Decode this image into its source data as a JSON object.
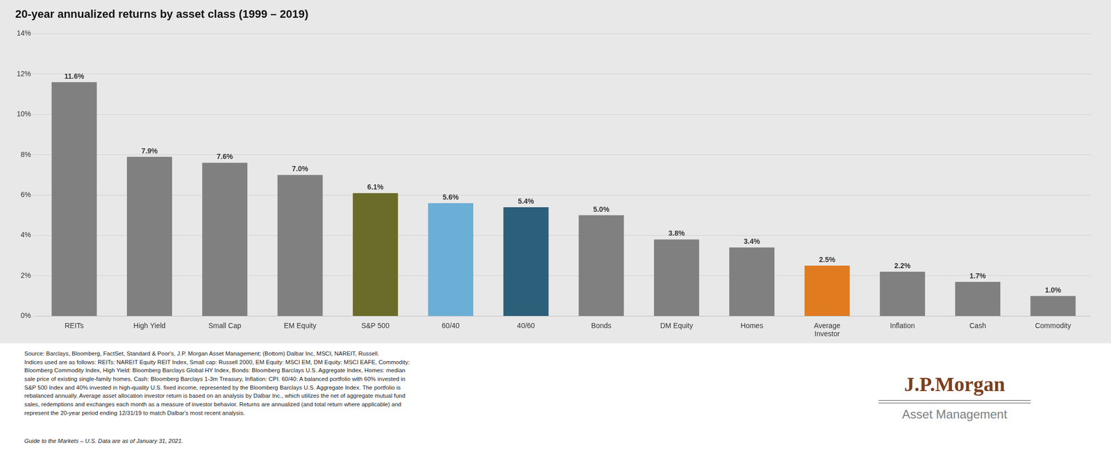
{
  "chart_data": {
    "type": "bar",
    "title": "20-year annualized returns by asset class (1999 – 2019)",
    "categories": [
      "REITs",
      "High Yield",
      "Small Cap",
      "EM Equity",
      "S&P 500",
      "60/40",
      "40/60",
      "Bonds",
      "DM Equity",
      "Homes",
      "Average\nInvestor",
      "Inflation",
      "Cash",
      "Commodity"
    ],
    "values": [
      11.6,
      7.9,
      7.6,
      7.0,
      6.1,
      5.6,
      5.4,
      5.0,
      3.8,
      3.4,
      2.5,
      2.2,
      1.7,
      1.0
    ],
    "value_labels": [
      "11.6%",
      "7.9%",
      "7.6%",
      "7.0%",
      "6.1%",
      "5.6%",
      "5.4%",
      "5.0%",
      "3.8%",
      "3.4%",
      "2.5%",
      "2.2%",
      "1.7%",
      "1.0%"
    ],
    "data_labels": true,
    "colors": [
      "#808080",
      "#808080",
      "#808080",
      "#808080",
      "#6b6b2a",
      "#6baed6",
      "#2b5f7a",
      "#808080",
      "#808080",
      "#808080",
      "#e07b20",
      "#808080",
      "#808080",
      "#808080"
    ],
    "ylim": [
      0,
      14
    ],
    "yticks": [
      {
        "value": 0,
        "label": "0%"
      },
      {
        "value": 2,
        "label": "2%"
      },
      {
        "value": 4,
        "label": "4%"
      },
      {
        "value": 6,
        "label": "6%"
      },
      {
        "value": 8,
        "label": "8%"
      },
      {
        "value": 10,
        "label": "10%"
      },
      {
        "value": 12,
        "label": "12%"
      },
      {
        "value": 14,
        "label": "14%"
      }
    ],
    "grid": true,
    "annotations": [
      "Source: Barclays, Bloomberg, FactSet, Standard & Poor's, J.P. Morgan Asset Management; (Bottom) Dalbar Inc, MSCI, NAREIT, Russell.\nIndices used are as follows: REITs: NAREIT Equity REIT Index, Small cap: Russell 2000, EM Equity: MSCI EM, DM Equity: MSCI EAFE, Commodity:\nBloomberg Commodity Index, High Yield: Bloomberg Barclays Global HY Index, Bonds: Bloomberg Barclays U.S. Aggregate Index, Homes: median\nsale price of existing single-family homes, Cash: Bloomberg Barclays 1-3m Treasury, Inflation: CPI. 60/40: A balanced portfolio with 60% invested in\nS&P 500 Index and 40% invested in high-quality U.S. fixed income, represented by the Bloomberg Barclays U.S. Aggregate Index. The portfolio is\nrebalanced annually. Average asset allocation investor return is based on an analysis by Dalbar Inc., which utilizes the net of aggregate mutual fund\nsales, redemptions and exchanges each month as a measure of investor behavior. Returns are annualized (and total return where applicable) and\nrepresent the 20-year period ending 12/31/19 to match Dalbar's most recent analysis.",
      "Guide to the Markets – U.S. Data are as of January 31, 2021.",
      "J.P.Morgan",
      "Asset Management"
    ]
  }
}
